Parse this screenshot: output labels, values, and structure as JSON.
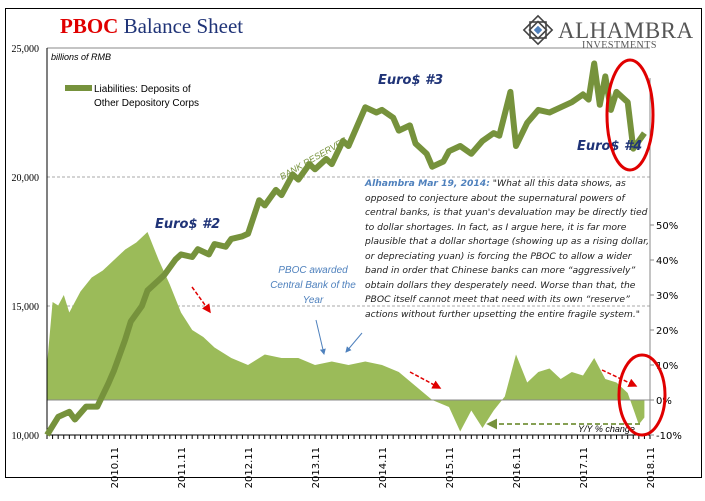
{
  "title": {
    "red": "PBOC",
    "rest": " Balance Sheet"
  },
  "logo": {
    "name": "ALHAMBRA",
    "sub": "INVESTMENTS"
  },
  "quote": {
    "source": "Alhambra Mar 19, 2014:",
    "text": " \"What all this data shows, as opposed to conjecture about the supernatural powers of central banks, is that yuan's devaluation may be directly tied to dollar shortages. In fact, as I argue here, it is far more plausible that a dollar shortage (showing up as a rising dollar, or depreciating yuan) is forcing the PBOC to allow a wider band in order that Chinese banks can more “aggressively” obtain dollars they desperately need. Worse than that, the PBOC itself cannot meet that need with its own “reserve” actions without further upsetting the entire fragile system.\""
  },
  "colors": {
    "line": "#76923c",
    "area": "#9bbb59",
    "red": "#e00000",
    "blue": "#4f81bd",
    "navy": "#1f3377"
  },
  "chart_data": {
    "type": "line+area",
    "ylabel_left": "billions of RMB",
    "ylim_left": [
      10000,
      25000
    ],
    "yticks_left": [
      "10,000",
      "15,000",
      "20,000",
      "25,000"
    ],
    "ylim_right": [
      -10,
      70
    ],
    "yticks_right": [
      "-10%",
      "0%",
      "10%",
      "20%",
      "30%",
      "40%",
      "50%"
    ],
    "xticks": [
      "2010.11",
      "2011.11",
      "2012.11",
      "2013.11",
      "2014.11",
      "2015.11",
      "2016.11",
      "2017.11",
      "2018.11"
    ],
    "x_range": [
      "2009.11",
      "2018.11"
    ],
    "series": [
      {
        "name": "Liabilities: Deposits of Other Depository Corps",
        "axis": "left",
        "kind": "line",
        "points": [
          [
            "2009.11",
            10000
          ],
          [
            "2010.01",
            10700
          ],
          [
            "2010.03",
            10900
          ],
          [
            "2010.04",
            10600
          ],
          [
            "2010.06",
            11100
          ],
          [
            "2010.08",
            11100
          ],
          [
            "2010.10",
            12000
          ],
          [
            "2010.11",
            12500
          ],
          [
            "2011.01",
            13700
          ],
          [
            "2011.02",
            14400
          ],
          [
            "2011.04",
            15000
          ],
          [
            "2011.05",
            15600
          ],
          [
            "2011.07",
            16000
          ],
          [
            "2011.08",
            16200
          ],
          [
            "2011.10",
            16800
          ],
          [
            "2011.11",
            17000
          ],
          [
            "2012.01",
            16900
          ],
          [
            "2012.02",
            17200
          ],
          [
            "2012.04",
            17000
          ],
          [
            "2012.05",
            17400
          ],
          [
            "2012.07",
            17300
          ],
          [
            "2012.08",
            17600
          ],
          [
            "2012.10",
            17700
          ],
          [
            "2012.11",
            17800
          ],
          [
            "2013.01",
            19100
          ],
          [
            "2013.02",
            18900
          ],
          [
            "2013.04",
            19500
          ],
          [
            "2013.05",
            19300
          ],
          [
            "2013.07",
            20100
          ],
          [
            "2013.08",
            19900
          ],
          [
            "2013.10",
            20500
          ],
          [
            "2013.11",
            20300
          ],
          [
            "2014.01",
            20700
          ],
          [
            "2014.02",
            20500
          ],
          [
            "2014.04",
            21400
          ],
          [
            "2014.05",
            21200
          ],
          [
            "2014.07",
            22200
          ],
          [
            "2014.08",
            22700
          ],
          [
            "2014.10",
            22500
          ],
          [
            "2014.11",
            22600
          ],
          [
            "2015.01",
            22300
          ],
          [
            "2015.02",
            21800
          ],
          [
            "2015.04",
            22000
          ],
          [
            "2015.05",
            21300
          ],
          [
            "2015.07",
            20900
          ],
          [
            "2015.08",
            20400
          ],
          [
            "2015.10",
            20600
          ],
          [
            "2015.11",
            21000
          ],
          [
            "2016.01",
            21200
          ],
          [
            "2016.03",
            20900
          ],
          [
            "2016.05",
            21400
          ],
          [
            "2016.07",
            21700
          ],
          [
            "2016.08",
            21600
          ],
          [
            "2016.10",
            23300
          ],
          [
            "2016.11",
            21200
          ],
          [
            "2017.01",
            22100
          ],
          [
            "2017.03",
            22600
          ],
          [
            "2017.05",
            22500
          ],
          [
            "2017.07",
            22700
          ],
          [
            "2017.09",
            22900
          ],
          [
            "2017.11",
            23200
          ],
          [
            "2017.12",
            23000
          ],
          [
            "2018.01",
            24400
          ],
          [
            "2018.02",
            22800
          ],
          [
            "2018.03",
            23900
          ],
          [
            "2018.04",
            22600
          ],
          [
            "2018.05",
            23300
          ],
          [
            "2018.07",
            22900
          ],
          [
            "2018.08",
            21100
          ],
          [
            "2018.10",
            21700
          ]
        ]
      },
      {
        "name": "Y/Y % change",
        "axis": "right",
        "kind": "area",
        "points": [
          [
            "2009.11",
            10
          ],
          [
            "2009.12",
            28
          ],
          [
            "2010.01",
            27
          ],
          [
            "2010.02",
            30
          ],
          [
            "2010.03",
            25
          ],
          [
            "2010.05",
            31
          ],
          [
            "2010.07",
            35
          ],
          [
            "2010.09",
            37
          ],
          [
            "2010.11",
            40
          ],
          [
            "2011.01",
            43
          ],
          [
            "2011.03",
            45
          ],
          [
            "2011.05",
            48
          ],
          [
            "2011.07",
            40
          ],
          [
            "2011.09",
            33
          ],
          [
            "2011.11",
            25
          ],
          [
            "2012.01",
            20
          ],
          [
            "2012.03",
            18
          ],
          [
            "2012.05",
            15
          ],
          [
            "2012.08",
            12
          ],
          [
            "2012.11",
            10
          ],
          [
            "2013.02",
            13
          ],
          [
            "2013.05",
            12
          ],
          [
            "2013.08",
            12
          ],
          [
            "2013.11",
            10
          ],
          [
            "2014.02",
            11
          ],
          [
            "2014.05",
            10
          ],
          [
            "2014.08",
            11
          ],
          [
            "2014.11",
            10
          ],
          [
            "2015.02",
            8
          ],
          [
            "2015.05",
            4
          ],
          [
            "2015.08",
            0
          ],
          [
            "2015.11",
            -2
          ],
          [
            "2016.01",
            -9
          ],
          [
            "2016.03",
            -3
          ],
          [
            "2016.05",
            -8
          ],
          [
            "2016.07",
            -3
          ],
          [
            "2016.09",
            1
          ],
          [
            "2016.11",
            13
          ],
          [
            "2017.01",
            5
          ],
          [
            "2017.03",
            8
          ],
          [
            "2017.05",
            9
          ],
          [
            "2017.07",
            6
          ],
          [
            "2017.09",
            8
          ],
          [
            "2017.11",
            7
          ],
          [
            "2018.01",
            12
          ],
          [
            "2018.03",
            6
          ],
          [
            "2018.05",
            5
          ],
          [
            "2018.07",
            2
          ],
          [
            "2018.09",
            -7
          ],
          [
            "2018.10",
            -5
          ]
        ]
      }
    ],
    "annotations": {
      "euro2": "Euro$ #2",
      "euro3": "Euro$ #3",
      "euro4": "Euro$ #4",
      "bank_reserves": "BANK RESERVES",
      "pboc_award": [
        "PBOC awarded",
        "Central Bank of the",
        "Year"
      ],
      "yoy": "Y/Y % change"
    },
    "legend": {
      "placement": "top-left",
      "lines": [
        "Liabilities: Deposits of",
        "Other Depository Corps"
      ]
    },
    "grid": "horizontal dashed"
  }
}
